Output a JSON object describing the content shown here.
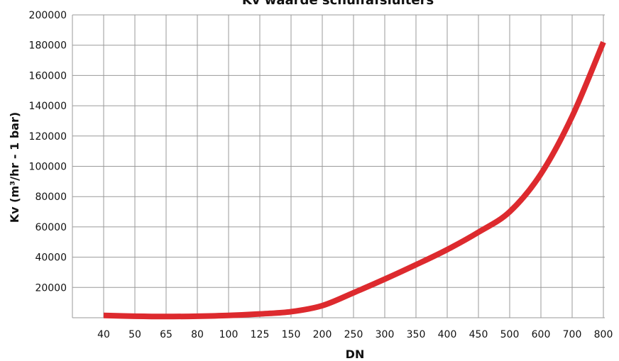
{
  "chart_data": {
    "type": "line",
    "title": "Kv waarde schuifafsluiters",
    "xlabel": "DN",
    "ylabel": "Kv (m³/hr - 1 bar)",
    "categories": [
      "40",
      "50",
      "65",
      "80",
      "100",
      "125",
      "150",
      "200",
      "250",
      "300",
      "350",
      "400",
      "450",
      "500",
      "600",
      "700",
      "800"
    ],
    "series": [
      {
        "values": [
          1500,
          1000,
          800,
          1000,
          1500,
          2500,
          4000,
          8000,
          16500,
          25500,
          35000,
          45000,
          56500,
          70000,
          95000,
          133000,
          182000
        ]
      }
    ],
    "ylim": [
      0,
      200000
    ],
    "yticks": [
      20000,
      40000,
      60000,
      80000,
      100000,
      120000,
      140000,
      160000,
      180000,
      200000
    ],
    "grid": true,
    "line_color": "#dd2a2e",
    "grid_color": "#9a9a9a"
  }
}
